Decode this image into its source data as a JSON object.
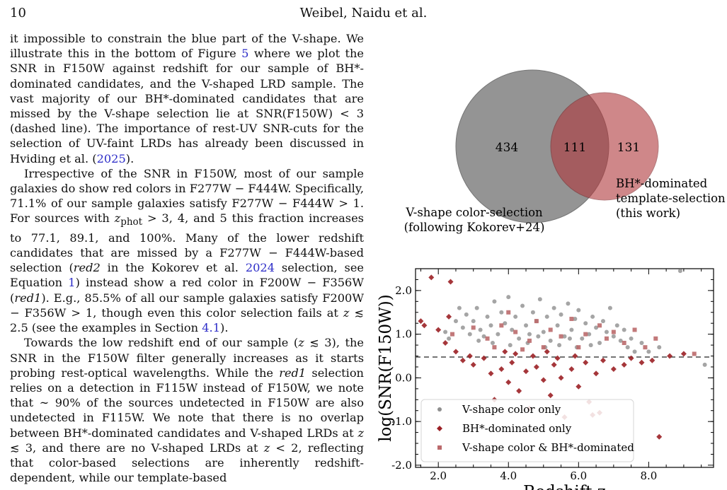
{
  "header": {
    "page_number": "10",
    "running_head": "Weibel, Naidu et al."
  },
  "body": {
    "p1": [
      {
        "t": "it impossible to constrain the blue part of the V-shape. We illustrate this in the bottom of Figure "
      },
      {
        "t": "5",
        "ref": true
      },
      {
        "t": " where we plot the SNR in F150W against redshift for our sample of BH*-dominated candidates, and the V-shaped LRD sample. The vast majority of our BH*-dominated candidates that are missed by the V-shape selection lie at SNR(F150W) < 3 (dashed line). The importance of rest-UV SNR-cuts for the selection of UV-faint LRDs has already been discussed in Hviding et al. ("
      },
      {
        "t": "2025",
        "ref": true
      },
      {
        "t": ")."
      }
    ],
    "p2": [
      {
        "t": "Irrespective of the SNR in F150W, most of our sample galaxies do show red colors in F277W − F444W. Specifically, 71.1% of our sample galaxies satisfy F277W − F444W > 1. For sources with "
      },
      {
        "t": "z",
        "em": true
      },
      {
        "t": "phot",
        "sub": true
      },
      {
        "t": " > 3, 4, and 5 this fraction increases to 77.1, 89.1, and 100%. Many of the lower redshift candidates that are missed by a F277W − F444W-based selection ("
      },
      {
        "t": "red2",
        "em": true
      },
      {
        "t": " in the Kokorev et al. "
      },
      {
        "t": "2024",
        "ref": true
      },
      {
        "t": " selection, see Equation "
      },
      {
        "t": "1",
        "ref": true
      },
      {
        "t": ") instead show a red color in F200W − F356W ("
      },
      {
        "t": "red1",
        "em": true
      },
      {
        "t": "). E.g., 85.5% of all our sample galaxies satisfy F200W − F356W > 1, though even this color selection fails at "
      },
      {
        "t": "z",
        "em": true
      },
      {
        "t": " ≲ 2.5 (see the examples in Section "
      },
      {
        "t": "4.1",
        "ref": true
      },
      {
        "t": ")."
      }
    ],
    "p3": [
      {
        "t": "Towards the low redshift end of our sample ("
      },
      {
        "t": "z",
        "em": true
      },
      {
        "t": " ≲ 3), the SNR in the F150W filter generally increases as it starts probing rest-optical wavelengths. While the "
      },
      {
        "t": "red1",
        "em": true
      },
      {
        "t": " selection relies on a detection in F115W instead of F150W, we note that ∼ 90% of the sources undetected in F150W are also undetected in F115W. We note that there is no overlap between BH*-dominated candidates and V-shaped LRDs at "
      },
      {
        "t": "z",
        "em": true
      },
      {
        "t": " ≲ 3, and there are no V-shaped LRDs at "
      },
      {
        "t": "z",
        "em": true
      },
      {
        "t": " < 2, reflecting that color-based selections are inherently redshift-dependent, while our template-based"
      }
    ]
  },
  "venn": {
    "only_vshape": "434",
    "overlap": "111",
    "only_bh": "131",
    "label_vshape": [
      "V-shape color-selection",
      "(following Kokorev+24)"
    ],
    "label_bh": [
      "BH*-dominated",
      "template-selection",
      "(this work)"
    ],
    "colors": {
      "vshape": "#8f8f8f",
      "bh": "#b0383c"
    }
  },
  "chart_data": {
    "type": "scatter",
    "xlabel": "Redshift z",
    "ylabel": "log(SNR(F150W))",
    "xlim": [
      1.35,
      9.85
    ],
    "ylim": [
      -2.05,
      2.5
    ],
    "xticks": [
      2.0,
      4.0,
      6.0,
      8.0
    ],
    "xtick_labels": [
      "2.0",
      "4.0",
      "6.0",
      "8.0"
    ],
    "yticks": [
      -2.0,
      -1.0,
      0.0,
      1.0,
      2.0
    ],
    "ytick_labels": [
      "-2.0",
      "-1.0",
      "0.0",
      "1.0",
      "2.0"
    ],
    "threshold_line": {
      "y": 0.477,
      "style": "dashed"
    },
    "grid": false,
    "legend_position": "bottom-left",
    "series": [
      {
        "name": "V-shape color only",
        "marker": "circle",
        "color": "#8f8f8f",
        "points": [
          [
            2.2,
            1.05
          ],
          [
            2.3,
            0.9
          ],
          [
            2.5,
            1.3
          ],
          [
            2.6,
            1.6
          ],
          [
            2.7,
            1.15
          ],
          [
            2.8,
            1.45
          ],
          [
            2.9,
            1.0
          ],
          [
            3.0,
            1.3
          ],
          [
            3.1,
            1.6
          ],
          [
            3.2,
            1.1
          ],
          [
            3.3,
            0.95
          ],
          [
            3.4,
            1.4
          ],
          [
            3.5,
            1.2
          ],
          [
            3.6,
            1.75
          ],
          [
            3.7,
            1.0
          ],
          [
            3.8,
            1.5
          ],
          [
            3.9,
            1.25
          ],
          [
            4.0,
            1.85
          ],
          [
            4.1,
            1.1
          ],
          [
            4.2,
            1.4
          ],
          [
            4.3,
            0.9
          ],
          [
            4.4,
            1.65
          ],
          [
            4.5,
            1.2
          ],
          [
            4.6,
            1.0
          ],
          [
            4.7,
            1.5
          ],
          [
            4.8,
            1.3
          ],
          [
            4.9,
            1.8
          ],
          [
            5.0,
            1.05
          ],
          [
            5.1,
            1.4
          ],
          [
            5.2,
            0.85
          ],
          [
            5.3,
            1.6
          ],
          [
            5.4,
            1.2
          ],
          [
            5.5,
            1.45
          ],
          [
            5.6,
            0.95
          ],
          [
            5.7,
            1.7
          ],
          [
            5.8,
            1.1
          ],
          [
            5.9,
            1.35
          ],
          [
            6.0,
            1.55
          ],
          [
            6.1,
            0.9
          ],
          [
            6.2,
            1.25
          ],
          [
            6.3,
            1.0
          ],
          [
            6.4,
            1.4
          ],
          [
            6.5,
            1.15
          ],
          [
            6.6,
            0.8
          ],
          [
            6.7,
            1.3
          ],
          [
            6.8,
            1.05
          ],
          [
            6.9,
            1.6
          ],
          [
            7.0,
            0.95
          ],
          [
            7.1,
            1.2
          ],
          [
            7.2,
            0.85
          ],
          [
            7.3,
            1.1
          ],
          [
            7.4,
            0.7
          ],
          [
            7.5,
            0.9
          ],
          [
            7.6,
            0.6
          ],
          [
            7.8,
            0.8
          ],
          [
            8.0,
            0.6
          ],
          [
            8.3,
            0.7
          ],
          [
            8.9,
            2.45
          ],
          [
            9.6,
            0.3
          ],
          [
            4.05,
            0.75
          ],
          [
            4.55,
            0.8
          ],
          [
            5.05,
            0.7
          ],
          [
            5.45,
            0.75
          ],
          [
            5.95,
            0.7
          ],
          [
            6.35,
            0.75
          ],
          [
            3.55,
            0.8
          ],
          [
            3.15,
            0.85
          ],
          [
            4.85,
            0.95
          ],
          [
            5.75,
            0.9
          ]
        ]
      },
      {
        "name": "BH*-dominated only",
        "marker": "diamond",
        "color": "#9b2025",
        "points": [
          [
            1.5,
            1.3
          ],
          [
            1.6,
            1.2
          ],
          [
            1.8,
            2.3
          ],
          [
            2.0,
            1.1
          ],
          [
            2.2,
            0.8
          ],
          [
            2.3,
            1.4
          ],
          [
            2.35,
            2.2
          ],
          [
            2.5,
            0.6
          ],
          [
            2.7,
            0.4
          ],
          [
            2.9,
            0.5
          ],
          [
            3.0,
            0.3
          ],
          [
            3.3,
            0.45
          ],
          [
            3.5,
            0.1
          ],
          [
            3.6,
            -0.5
          ],
          [
            3.8,
            0.2
          ],
          [
            4.0,
            -0.1
          ],
          [
            4.1,
            0.35
          ],
          [
            4.3,
            -0.3
          ],
          [
            4.5,
            0.15
          ],
          [
            4.6,
            -0.7
          ],
          [
            4.8,
            0.25
          ],
          [
            5.0,
            -0.05
          ],
          [
            5.2,
            -0.4
          ],
          [
            5.3,
            0.3
          ],
          [
            5.5,
            0.0
          ],
          [
            5.6,
            -0.9
          ],
          [
            5.8,
            0.2
          ],
          [
            6.0,
            -0.2
          ],
          [
            6.2,
            0.35
          ],
          [
            6.3,
            -0.55
          ],
          [
            6.5,
            0.1
          ],
          [
            6.7,
            0.4
          ],
          [
            7.0,
            0.2
          ],
          [
            7.3,
            0.3
          ],
          [
            7.5,
            0.45
          ],
          [
            7.8,
            0.35
          ],
          [
            8.1,
            0.4
          ],
          [
            8.3,
            -1.35
          ],
          [
            8.6,
            0.5
          ],
          [
            9.0,
            0.55
          ],
          [
            4.2,
            0.55
          ],
          [
            5.1,
            0.6
          ],
          [
            5.9,
            0.5
          ],
          [
            6.6,
            -0.8
          ],
          [
            6.4,
            -0.85
          ],
          [
            3.9,
            0.6
          ],
          [
            4.7,
            0.5
          ],
          [
            5.4,
            0.45
          ]
        ]
      },
      {
        "name": "V-shape color & BH*-dominated",
        "marker": "square",
        "color": "#bb6a6c",
        "points": [
          [
            2.4,
            1.0
          ],
          [
            3.0,
            1.15
          ],
          [
            3.4,
            0.9
          ],
          [
            3.8,
            1.2
          ],
          [
            4.2,
            1.05
          ],
          [
            4.6,
            0.85
          ],
          [
            4.8,
            1.3
          ],
          [
            5.2,
            1.1
          ],
          [
            5.5,
            0.95
          ],
          [
            5.8,
            1.35
          ],
          [
            6.2,
            1.0
          ],
          [
            6.6,
            1.2
          ],
          [
            7.0,
            1.05
          ],
          [
            7.3,
            0.8
          ],
          [
            7.6,
            1.1
          ],
          [
            7.9,
            0.7
          ],
          [
            8.2,
            0.9
          ],
          [
            9.3,
            0.55
          ],
          [
            4.4,
            0.65
          ],
          [
            5.0,
            0.7
          ],
          [
            6.0,
            0.7
          ],
          [
            3.6,
            0.7
          ],
          [
            6.8,
            0.9
          ],
          [
            4.0,
            1.5
          ]
        ]
      }
    ]
  }
}
